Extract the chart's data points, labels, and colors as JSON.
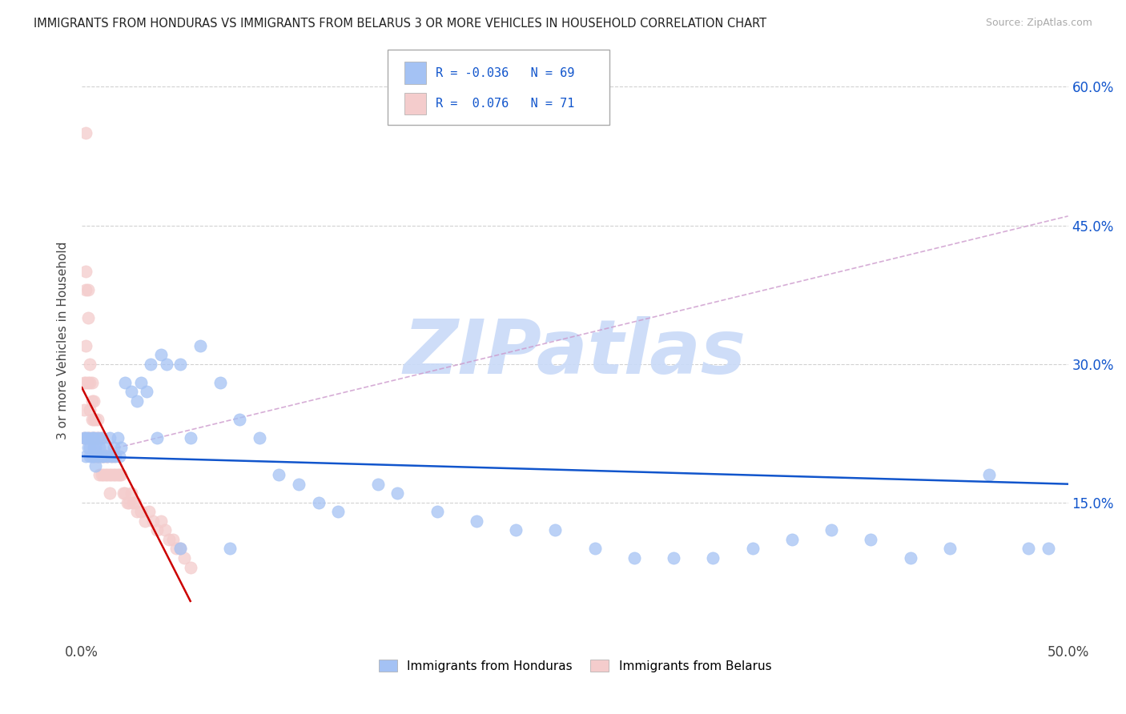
{
  "title": "IMMIGRANTS FROM HONDURAS VS IMMIGRANTS FROM BELARUS 3 OR MORE VEHICLES IN HOUSEHOLD CORRELATION CHART",
  "source": "Source: ZipAtlas.com",
  "ylabel": "3 or more Vehicles in Household",
  "xlim": [
    0.0,
    0.5
  ],
  "ylim": [
    0.0,
    0.65
  ],
  "yticks": [
    0.15,
    0.3,
    0.45,
    0.6
  ],
  "ytick_labels": [
    "15.0%",
    "30.0%",
    "45.0%",
    "60.0%"
  ],
  "xticks": [
    0.0,
    0.5
  ],
  "xtick_labels": [
    "0.0%",
    "50.0%"
  ],
  "color_honduras": "#a4c2f4",
  "color_belarus": "#f4cccc",
  "trendline_honduras_color": "#1155cc",
  "trendline_belarus_color": "#cc0000",
  "trendline_dashed_color": "#cc99cc",
  "watermark_color": "#c9daf8",
  "background_color": "#ffffff",
  "grid_color": "#cccccc",
  "honduras_x": [
    0.001,
    0.002,
    0.002,
    0.003,
    0.003,
    0.004,
    0.004,
    0.005,
    0.005,
    0.006,
    0.006,
    0.006,
    0.007,
    0.007,
    0.008,
    0.008,
    0.009,
    0.01,
    0.01,
    0.011,
    0.012,
    0.013,
    0.014,
    0.015,
    0.016,
    0.017,
    0.018,
    0.019,
    0.02,
    0.022,
    0.025,
    0.028,
    0.03,
    0.033,
    0.035,
    0.038,
    0.04,
    0.043,
    0.05,
    0.055,
    0.06,
    0.07,
    0.08,
    0.09,
    0.1,
    0.11,
    0.12,
    0.13,
    0.15,
    0.16,
    0.18,
    0.2,
    0.22,
    0.24,
    0.26,
    0.28,
    0.3,
    0.32,
    0.34,
    0.36,
    0.38,
    0.4,
    0.42,
    0.44,
    0.46,
    0.48,
    0.49,
    0.05,
    0.075
  ],
  "honduras_y": [
    0.22,
    0.22,
    0.2,
    0.21,
    0.22,
    0.2,
    0.21,
    0.2,
    0.22,
    0.21,
    0.2,
    0.22,
    0.21,
    0.19,
    0.2,
    0.22,
    0.21,
    0.2,
    0.22,
    0.2,
    0.21,
    0.2,
    0.22,
    0.2,
    0.21,
    0.2,
    0.22,
    0.2,
    0.21,
    0.28,
    0.27,
    0.26,
    0.28,
    0.27,
    0.3,
    0.22,
    0.31,
    0.3,
    0.3,
    0.22,
    0.32,
    0.28,
    0.24,
    0.22,
    0.18,
    0.17,
    0.15,
    0.14,
    0.17,
    0.16,
    0.14,
    0.13,
    0.12,
    0.12,
    0.1,
    0.09,
    0.09,
    0.09,
    0.1,
    0.11,
    0.12,
    0.11,
    0.09,
    0.1,
    0.18,
    0.1,
    0.1,
    0.1,
    0.1
  ],
  "belarus_x": [
    0.001,
    0.001,
    0.001,
    0.002,
    0.002,
    0.002,
    0.002,
    0.003,
    0.003,
    0.003,
    0.003,
    0.004,
    0.004,
    0.004,
    0.004,
    0.005,
    0.005,
    0.005,
    0.005,
    0.006,
    0.006,
    0.006,
    0.007,
    0.007,
    0.007,
    0.008,
    0.008,
    0.008,
    0.009,
    0.009,
    0.009,
    0.01,
    0.01,
    0.01,
    0.011,
    0.011,
    0.012,
    0.012,
    0.013,
    0.013,
    0.014,
    0.014,
    0.015,
    0.015,
    0.016,
    0.016,
    0.017,
    0.018,
    0.019,
    0.02,
    0.021,
    0.022,
    0.023,
    0.024,
    0.025,
    0.026,
    0.027,
    0.028,
    0.03,
    0.032,
    0.034,
    0.036,
    0.038,
    0.04,
    0.042,
    0.044,
    0.046,
    0.048,
    0.05,
    0.052,
    0.055
  ],
  "belarus_y": [
    0.22,
    0.25,
    0.28,
    0.4,
    0.38,
    0.32,
    0.28,
    0.38,
    0.35,
    0.28,
    0.22,
    0.3,
    0.28,
    0.25,
    0.22,
    0.28,
    0.26,
    0.24,
    0.22,
    0.26,
    0.24,
    0.22,
    0.24,
    0.22,
    0.2,
    0.24,
    0.22,
    0.2,
    0.22,
    0.2,
    0.18,
    0.22,
    0.2,
    0.18,
    0.2,
    0.18,
    0.2,
    0.18,
    0.2,
    0.18,
    0.18,
    0.16,
    0.2,
    0.18,
    0.2,
    0.18,
    0.18,
    0.18,
    0.18,
    0.18,
    0.16,
    0.16,
    0.15,
    0.15,
    0.16,
    0.15,
    0.15,
    0.14,
    0.14,
    0.13,
    0.14,
    0.13,
    0.12,
    0.13,
    0.12,
    0.11,
    0.11,
    0.1,
    0.1,
    0.09,
    0.08
  ],
  "belarus_outlier_x": [
    0.002
  ],
  "belarus_outlier_y": [
    0.55
  ]
}
